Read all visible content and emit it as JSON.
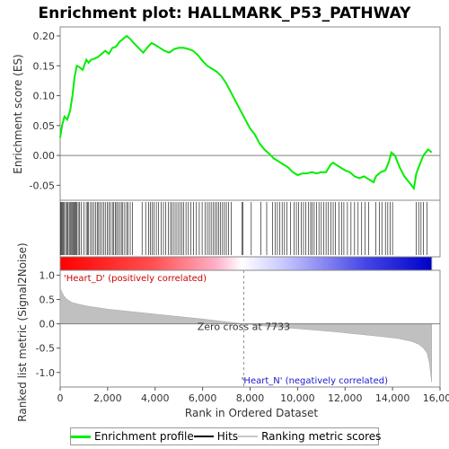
{
  "chart_data": {
    "type": "line",
    "title": "Enrichment plot: HALLMARK_P53_PATHWAY",
    "es_panel": {
      "ylabel": "Enrichment score (ES)",
      "ylim": [
        -0.075,
        0.215
      ],
      "yticks": [
        -0.05,
        0.0,
        0.05,
        0.1,
        0.15,
        0.2
      ],
      "ytick_labels": [
        "-0.05",
        "0.00",
        "0.05",
        "0.10",
        "0.15",
        "0.20"
      ],
      "series": {
        "name": "Enrichment profile",
        "color": "#00ee00",
        "x": [
          0,
          80,
          180,
          300,
          420,
          520,
          600,
          700,
          800,
          950,
          1100,
          1200,
          1300,
          1450,
          1600,
          1750,
          1900,
          2050,
          2200,
          2350,
          2500,
          2650,
          2800,
          2950,
          3100,
          3300,
          3500,
          3700,
          3850,
          4000,
          4200,
          4400,
          4600,
          4800,
          5000,
          5200,
          5400,
          5600,
          5800,
          6000,
          6200,
          6400,
          6600,
          6800,
          7000,
          7200,
          7400,
          7600,
          7800,
          8000,
          8200,
          8400,
          8600,
          8800,
          9000,
          9200,
          9400,
          9600,
          9800,
          10000,
          10200,
          10400,
          10600,
          10800,
          11000,
          11200,
          11400,
          11500,
          11600,
          11800,
          12000,
          12200,
          12400,
          12600,
          12800,
          13000,
          13200,
          13300,
          13500,
          13700,
          13850,
          13950,
          14100,
          14300,
          14500,
          14700,
          14900,
          15000,
          15100,
          15200,
          15300,
          15400,
          15500,
          15650
        ],
        "y": [
          0.03,
          0.05,
          0.065,
          0.06,
          0.075,
          0.1,
          0.13,
          0.15,
          0.148,
          0.143,
          0.16,
          0.155,
          0.16,
          0.162,
          0.165,
          0.17,
          0.175,
          0.17,
          0.18,
          0.182,
          0.19,
          0.195,
          0.2,
          0.195,
          0.188,
          0.18,
          0.172,
          0.182,
          0.188,
          0.185,
          0.18,
          0.175,
          0.172,
          0.178,
          0.18,
          0.18,
          0.178,
          0.175,
          0.168,
          0.158,
          0.15,
          0.145,
          0.14,
          0.132,
          0.12,
          0.105,
          0.09,
          0.075,
          0.06,
          0.045,
          0.035,
          0.02,
          0.01,
          0.003,
          -0.005,
          -0.01,
          -0.015,
          -0.02,
          -0.028,
          -0.033,
          -0.03,
          -0.03,
          -0.028,
          -0.03,
          -0.028,
          -0.028,
          -0.015,
          -0.012,
          -0.015,
          -0.02,
          -0.025,
          -0.028,
          -0.035,
          -0.038,
          -0.035,
          -0.04,
          -0.045,
          -0.035,
          -0.028,
          -0.025,
          -0.01,
          0.005,
          0.0,
          -0.02,
          -0.035,
          -0.045,
          -0.055,
          -0.03,
          -0.02,
          -0.01,
          0.0,
          0.005,
          0.01,
          0.005
        ]
      }
    },
    "hits_panel": {
      "name": "Hits",
      "hit_positions": [
        30,
        60,
        100,
        140,
        180,
        230,
        280,
        330,
        380,
        420,
        460,
        500,
        540,
        580,
        620,
        660,
        700,
        760,
        820,
        880,
        1000,
        1100,
        1150,
        1200,
        1280,
        1350,
        1420,
        1500,
        1560,
        1620,
        1680,
        1760,
        1840,
        1900,
        1980,
        2050,
        2120,
        2200,
        2260,
        2320,
        2380,
        2440,
        2520,
        2580,
        2640,
        2720,
        2800,
        2860,
        2950,
        3050,
        3450,
        3600,
        3720,
        3800,
        3880,
        3950,
        4050,
        4150,
        4250,
        4350,
        4450,
        4550,
        4650,
        4720,
        4800,
        4880,
        4960,
        5040,
        5120,
        5200,
        5300,
        5400,
        5500,
        5620,
        5740,
        5860,
        5980,
        6100,
        6200,
        6280,
        6360,
        6440,
        6520,
        6600,
        6680,
        6760,
        6840,
        6920,
        7000,
        7100,
        7200,
        7650,
        7700,
        8050,
        8450,
        8700,
        8950,
        9050,
        9150,
        9250,
        9350,
        9450,
        9550,
        9700,
        9850,
        9950,
        10050,
        10150,
        10250,
        10350,
        10450,
        10550,
        10620,
        10700,
        10800,
        10900,
        11000,
        11100,
        11200,
        11300,
        11400,
        11500,
        11600,
        11750,
        11850,
        11950,
        12100,
        12250,
        12400,
        12550,
        12700,
        12850,
        13000,
        13300,
        13450,
        13550,
        13700,
        13800,
        13900,
        14000,
        15000,
        15100,
        15200,
        15300,
        15450
      ]
    },
    "metric_panel": {
      "name": "Ranking metric scores",
      "ylabel": "Ranked list metric (Signal2Noise)",
      "ylim": [
        -1.3,
        1.1
      ],
      "yticks": [
        -1.0,
        -0.5,
        0.0,
        0.5,
        1.0
      ],
      "ytick_labels": [
        "-1.0",
        "-0.5",
        "0.0",
        "0.5",
        "1.0"
      ],
      "x": [
        0,
        50,
        150,
        300,
        500,
        800,
        1200,
        2000,
        3000,
        4000,
        5000,
        6000,
        7000,
        7733,
        8500,
        9500,
        10500,
        11500,
        12500,
        13500,
        14200,
        14800,
        15100,
        15300,
        15450,
        15550,
        15650
      ],
      "y": [
        0.75,
        0.68,
        0.58,
        0.5,
        0.44,
        0.4,
        0.36,
        0.3,
        0.25,
        0.2,
        0.15,
        0.1,
        0.04,
        0.0,
        -0.04,
        -0.08,
        -0.12,
        -0.16,
        -0.21,
        -0.26,
        -0.3,
        -0.36,
        -0.42,
        -0.5,
        -0.6,
        -0.8,
        -1.2
      ],
      "zero_cross_label": "Zero cross at 7733",
      "zero_cross_rank": 7733,
      "pos_label": "'Heart_D' (positively correlated)",
      "neg_label": "'Heart_N' (negatively correlated)"
    },
    "xaxis": {
      "xlabel": "Rank in Ordered Dataset",
      "xlim": [
        0,
        16000
      ],
      "xticks": [
        0,
        2000,
        4000,
        6000,
        8000,
        10000,
        12000,
        14000,
        16000
      ],
      "xtick_labels": [
        "0",
        "2,000",
        "4,000",
        "6,000",
        "8,000",
        "10,000",
        "12,000",
        "14,000",
        "16,000"
      ],
      "n_genes": 15650
    },
    "colors": {
      "positive": "#ff0000",
      "neutral": "#ffffff",
      "negative": "#0000cc",
      "metric_fill": "#c0c0c0",
      "hits": "#000000",
      "zero_line": "#808080"
    }
  },
  "legend": {
    "items": [
      {
        "label": "Enrichment profile",
        "color": "#00ee00"
      },
      {
        "label": "Hits",
        "color": "#000000"
      },
      {
        "label": "Ranking metric scores",
        "color": "#c8c8c8"
      }
    ]
  }
}
